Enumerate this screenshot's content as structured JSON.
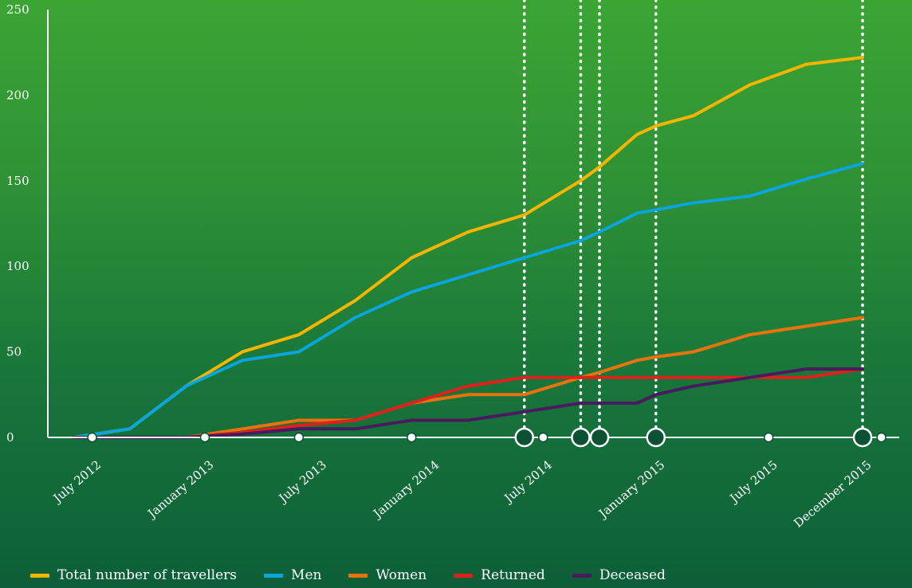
{
  "chart_data": {
    "type": "line",
    "title": "",
    "xlabel": "",
    "ylabel": "",
    "ylim": [
      0,
      250
    ],
    "y_ticks": [
      0,
      50,
      100,
      150,
      200,
      250
    ],
    "x_range": [
      "2012-06",
      "2015-12"
    ],
    "x_ticks": [
      {
        "date": "2012-07",
        "label": "July 2012"
      },
      {
        "date": "2013-01",
        "label": "January 2013"
      },
      {
        "date": "2013-07",
        "label": "July 2013"
      },
      {
        "date": "2014-01",
        "label": "January 2014"
      },
      {
        "date": "2014-07",
        "label": "July 2014"
      },
      {
        "date": "2015-01",
        "label": "January 2015"
      },
      {
        "date": "2015-07",
        "label": "July 2015"
      },
      {
        "date": "2015-12",
        "label": "December 2015"
      }
    ],
    "grid": false,
    "legend_position": "bottom",
    "event_markers": [
      {
        "date": "2012-07",
        "size": "small"
      },
      {
        "date": "2013-01",
        "size": "small"
      },
      {
        "date": "2013-06",
        "size": "small"
      },
      {
        "date": "2013-12",
        "size": "small"
      },
      {
        "date": "2014-06",
        "size": "large",
        "line": true
      },
      {
        "date": "2014-07",
        "size": "small"
      },
      {
        "date": "2014-09",
        "size": "large",
        "line": true
      },
      {
        "date": "2014-10",
        "size": "large",
        "line": true
      },
      {
        "date": "2015-01",
        "size": "large",
        "line": true
      },
      {
        "date": "2015-07",
        "size": "small"
      },
      {
        "date": "2015-12",
        "size": "large",
        "line": true
      },
      {
        "date": "2016-01",
        "size": "small"
      }
    ],
    "series": [
      {
        "name": "Total number of travellers",
        "color": "#f5b400",
        "points": [
          [
            "2012-06",
            0
          ],
          [
            "2012-09",
            5
          ],
          [
            "2012-12",
            30
          ],
          [
            "2013-03",
            50
          ],
          [
            "2013-06",
            60
          ],
          [
            "2013-09",
            80
          ],
          [
            "2013-12",
            105
          ],
          [
            "2014-03",
            120
          ],
          [
            "2014-06",
            130
          ],
          [
            "2014-09",
            150
          ],
          [
            "2014-10",
            158
          ],
          [
            "2014-12",
            177
          ],
          [
            "2015-01",
            182
          ],
          [
            "2015-03",
            188
          ],
          [
            "2015-06",
            206
          ],
          [
            "2015-09",
            218
          ],
          [
            "2015-12",
            222
          ]
        ]
      },
      {
        "name": "Men",
        "color": "#0aa5dd",
        "points": [
          [
            "2012-06",
            0
          ],
          [
            "2012-09",
            5
          ],
          [
            "2012-12",
            30
          ],
          [
            "2013-03",
            45
          ],
          [
            "2013-06",
            50
          ],
          [
            "2013-09",
            70
          ],
          [
            "2013-12",
            85
          ],
          [
            "2014-03",
            95
          ],
          [
            "2014-06",
            105
          ],
          [
            "2014-09",
            115
          ],
          [
            "2014-10",
            120
          ],
          [
            "2014-12",
            131
          ],
          [
            "2015-01",
            133
          ],
          [
            "2015-03",
            137
          ],
          [
            "2015-06",
            141
          ],
          [
            "2015-09",
            151
          ],
          [
            "2015-12",
            160
          ]
        ]
      },
      {
        "name": "Women",
        "color": "#e8730d",
        "points": [
          [
            "2012-06",
            0
          ],
          [
            "2012-09",
            0
          ],
          [
            "2012-12",
            0
          ],
          [
            "2013-03",
            5
          ],
          [
            "2013-06",
            10
          ],
          [
            "2013-09",
            10
          ],
          [
            "2013-12",
            20
          ],
          [
            "2014-03",
            25
          ],
          [
            "2014-06",
            25
          ],
          [
            "2014-09",
            35
          ],
          [
            "2014-10",
            38
          ],
          [
            "2014-12",
            45
          ],
          [
            "2015-01",
            47
          ],
          [
            "2015-03",
            50
          ],
          [
            "2015-06",
            60
          ],
          [
            "2015-09",
            65
          ],
          [
            "2015-12",
            70
          ]
        ]
      },
      {
        "name": "Returned",
        "color": "#e0201b",
        "points": [
          [
            "2012-06",
            0
          ],
          [
            "2012-09",
            0
          ],
          [
            "2012-12",
            0
          ],
          [
            "2013-03",
            3
          ],
          [
            "2013-06",
            7
          ],
          [
            "2013-09",
            10
          ],
          [
            "2013-12",
            20
          ],
          [
            "2014-03",
            30
          ],
          [
            "2014-06",
            35
          ],
          [
            "2014-09",
            35
          ],
          [
            "2014-10",
            35
          ],
          [
            "2014-12",
            35
          ],
          [
            "2015-01",
            35
          ],
          [
            "2015-03",
            35
          ],
          [
            "2015-06",
            35
          ],
          [
            "2015-09",
            35
          ],
          [
            "2015-12",
            40
          ]
        ]
      },
      {
        "name": "Deceased",
        "color": "#4a1a5e",
        "points": [
          [
            "2012-06",
            0
          ],
          [
            "2012-09",
            0
          ],
          [
            "2012-12",
            0
          ],
          [
            "2013-03",
            2
          ],
          [
            "2013-06",
            5
          ],
          [
            "2013-09",
            5
          ],
          [
            "2013-12",
            10
          ],
          [
            "2014-03",
            10
          ],
          [
            "2014-06",
            15
          ],
          [
            "2014-09",
            20
          ],
          [
            "2014-10",
            20
          ],
          [
            "2014-12",
            20
          ],
          [
            "2015-01",
            25
          ],
          [
            "2015-03",
            30
          ],
          [
            "2015-06",
            35
          ],
          [
            "2015-09",
            40
          ],
          [
            "2015-12",
            40
          ]
        ]
      }
    ]
  }
}
